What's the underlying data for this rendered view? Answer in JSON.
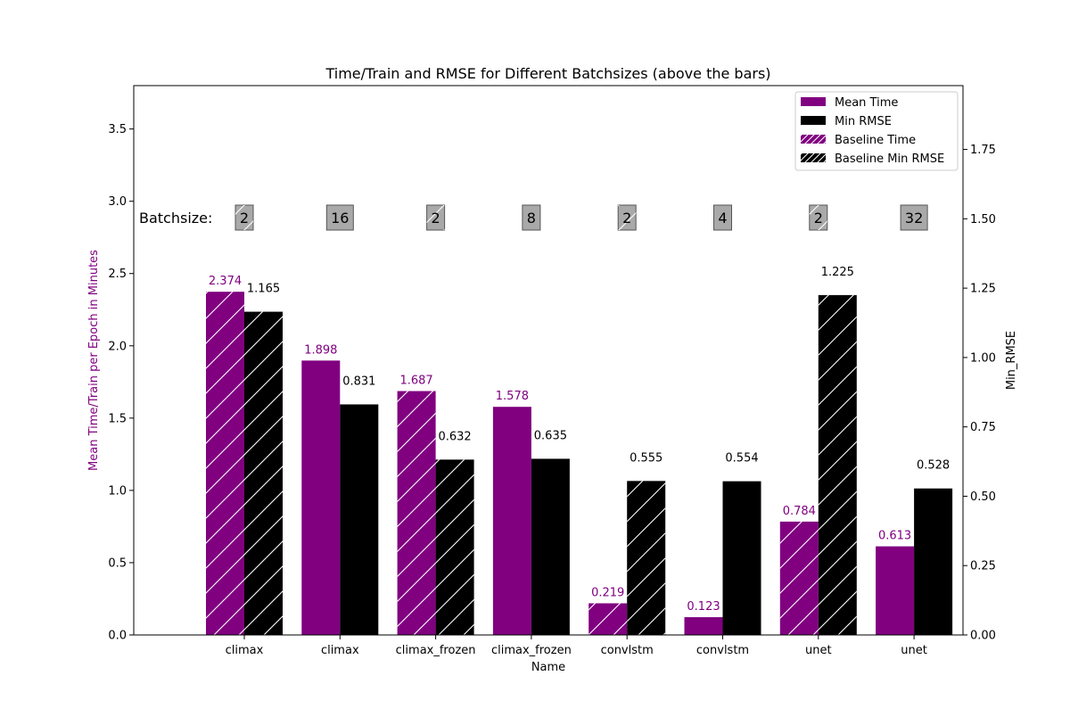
{
  "colors": {
    "time": "#800080",
    "rmse": "#000000",
    "badge_fill": "#a9a9a9",
    "hatch": "#ffffff"
  },
  "chart_data": {
    "type": "bar",
    "title": "Time/Train and RMSE for Different Batchsizes (above the bars)",
    "xlabel": "Name",
    "ylabel_left": "Mean Time/Train per Epoch in Minutes",
    "ylabel_right": "Min_RMSE",
    "ylim_left": [
      0,
      3.8
    ],
    "ylim_right": [
      0,
      1.98
    ],
    "yticks_left": [
      "0.0",
      "0.5",
      "1.0",
      "1.5",
      "2.0",
      "2.5",
      "3.0",
      "3.5"
    ],
    "yticks_right": [
      "0.00",
      "0.25",
      "0.50",
      "0.75",
      "1.00",
      "1.25",
      "1.50",
      "1.75"
    ],
    "batchsize_label": "Batchsize:",
    "categories": [
      "climax",
      "climax",
      "climax_frozen",
      "climax_frozen",
      "convlstm",
      "convlstm",
      "unet",
      "unet"
    ],
    "batchsizes": [
      "2",
      "16",
      "2",
      "8",
      "2",
      "4",
      "2",
      "32"
    ],
    "baseline": [
      true,
      false,
      true,
      false,
      true,
      false,
      true,
      false
    ],
    "series": [
      {
        "name": "Mean Time",
        "axis": "left",
        "values": [
          2.374,
          1.898,
          1.687,
          1.578,
          0.219,
          0.123,
          0.784,
          0.613
        ],
        "labels": [
          "2.374",
          "1.898",
          "1.687",
          "1.578",
          "0.219",
          "0.123",
          "0.784",
          "0.613"
        ]
      },
      {
        "name": "Min RMSE",
        "axis": "right",
        "values": [
          1.165,
          0.831,
          0.632,
          0.635,
          0.555,
          0.554,
          1.225,
          0.528
        ],
        "labels": [
          "1.165",
          "0.831",
          "0.632",
          "0.635",
          "0.555",
          "0.554",
          "1.225",
          "0.528"
        ]
      }
    ],
    "legend": {
      "placement": "top-right",
      "entries": [
        "Mean Time",
        "Min RMSE",
        "Baseline Time",
        "Baseline Min RMSE"
      ]
    },
    "grid": false
  }
}
